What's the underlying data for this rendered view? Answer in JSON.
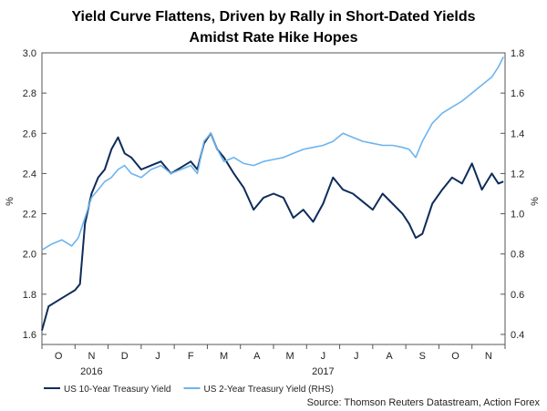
{
  "chart_data": {
    "type": "line",
    "title": "Yield Curve Flattens, Driven by Rally in Short-Dated Yields",
    "subtitle": "Amidst Rate Hike Hopes",
    "ylabel_left": "%",
    "ylabel_right": "%",
    "ylim_left": [
      1.55,
      3.0
    ],
    "ylim_right": [
      0.35,
      1.8
    ],
    "yticks_left": [
      "1.6",
      "1.8",
      "2.0",
      "2.2",
      "2.4",
      "2.6",
      "2.8",
      "3.0"
    ],
    "yticks_right": [
      "0.4",
      "0.6",
      "0.8",
      "1.0",
      "1.2",
      "1.4",
      "1.6",
      "1.8"
    ],
    "ytick_values_left": [
      1.6,
      1.8,
      2.0,
      2.2,
      2.4,
      2.6,
      2.8,
      3.0
    ],
    "ytick_values_right": [
      0.4,
      0.6,
      0.8,
      1.0,
      1.2,
      1.4,
      1.6,
      1.8
    ],
    "month_labels": [
      "O",
      "N",
      "D",
      "J",
      "F",
      "M",
      "A",
      "M",
      "J",
      "J",
      "A",
      "S",
      "O",
      "N"
    ],
    "year_labels": [
      {
        "label": "2016",
        "month_index": 1
      },
      {
        "label": "2017",
        "month_index": 8
      }
    ],
    "x_range_months": [
      0,
      14
    ],
    "series": [
      {
        "name": "US 10-Year Treasury Yield",
        "axis": "left",
        "color": "#0d2c5a",
        "x": [
          0,
          0.2,
          0.4,
          0.6,
          0.8,
          1.0,
          1.15,
          1.3,
          1.5,
          1.7,
          1.9,
          2.1,
          2.3,
          2.5,
          2.7,
          3.0,
          3.3,
          3.6,
          3.9,
          4.2,
          4.5,
          4.7,
          4.9,
          5.1,
          5.3,
          5.5,
          5.8,
          6.1,
          6.4,
          6.7,
          7.0,
          7.3,
          7.6,
          7.9,
          8.2,
          8.5,
          8.8,
          9.1,
          9.4,
          9.7,
          10.0,
          10.3,
          10.6,
          10.9,
          11.1,
          11.3,
          11.5,
          11.8,
          12.1,
          12.4,
          12.7,
          13.0,
          13.3,
          13.6,
          13.8,
          13.95
        ],
        "values": [
          1.62,
          1.74,
          1.76,
          1.78,
          1.8,
          1.82,
          1.85,
          2.15,
          2.3,
          2.38,
          2.42,
          2.52,
          2.58,
          2.5,
          2.48,
          2.42,
          2.44,
          2.46,
          2.4,
          2.43,
          2.46,
          2.42,
          2.55,
          2.6,
          2.52,
          2.48,
          2.4,
          2.33,
          2.22,
          2.28,
          2.3,
          2.28,
          2.18,
          2.22,
          2.16,
          2.25,
          2.38,
          2.32,
          2.3,
          2.26,
          2.22,
          2.3,
          2.25,
          2.2,
          2.15,
          2.08,
          2.1,
          2.25,
          2.32,
          2.38,
          2.35,
          2.45,
          2.32,
          2.4,
          2.35,
          2.36
        ]
      },
      {
        "name": "US 2-Year Treasury Yield (RHS)",
        "axis": "right",
        "color": "#6cb4ee",
        "x": [
          0,
          0.3,
          0.6,
          0.9,
          1.1,
          1.3,
          1.5,
          1.7,
          1.9,
          2.1,
          2.3,
          2.5,
          2.7,
          3.0,
          3.3,
          3.6,
          3.9,
          4.2,
          4.5,
          4.7,
          4.9,
          5.1,
          5.3,
          5.5,
          5.8,
          6.1,
          6.4,
          6.7,
          7.0,
          7.3,
          7.6,
          7.9,
          8.2,
          8.5,
          8.8,
          9.1,
          9.4,
          9.7,
          10.0,
          10.3,
          10.6,
          10.9,
          11.1,
          11.3,
          11.5,
          11.8,
          12.1,
          12.4,
          12.7,
          13.0,
          13.3,
          13.6,
          13.8,
          13.95
        ],
        "values": [
          0.82,
          0.85,
          0.87,
          0.84,
          0.88,
          0.98,
          1.08,
          1.12,
          1.16,
          1.18,
          1.22,
          1.24,
          1.2,
          1.18,
          1.22,
          1.24,
          1.2,
          1.22,
          1.24,
          1.2,
          1.36,
          1.4,
          1.32,
          1.26,
          1.28,
          1.25,
          1.24,
          1.26,
          1.27,
          1.28,
          1.3,
          1.32,
          1.33,
          1.34,
          1.36,
          1.4,
          1.38,
          1.36,
          1.35,
          1.34,
          1.34,
          1.33,
          1.32,
          1.28,
          1.36,
          1.45,
          1.5,
          1.53,
          1.56,
          1.6,
          1.64,
          1.68,
          1.73,
          1.78
        ]
      }
    ],
    "legend": [
      {
        "label": "US 10-Year Treasury Yield",
        "color": "#0d2c5a"
      },
      {
        "label": "US 2-Year Treasury Yield (RHS)",
        "color": "#6cb4ee"
      }
    ],
    "legend_position": "bottom-left",
    "source": "Source: Thomson Reuters Datastream, Action Forex",
    "grid": false
  }
}
